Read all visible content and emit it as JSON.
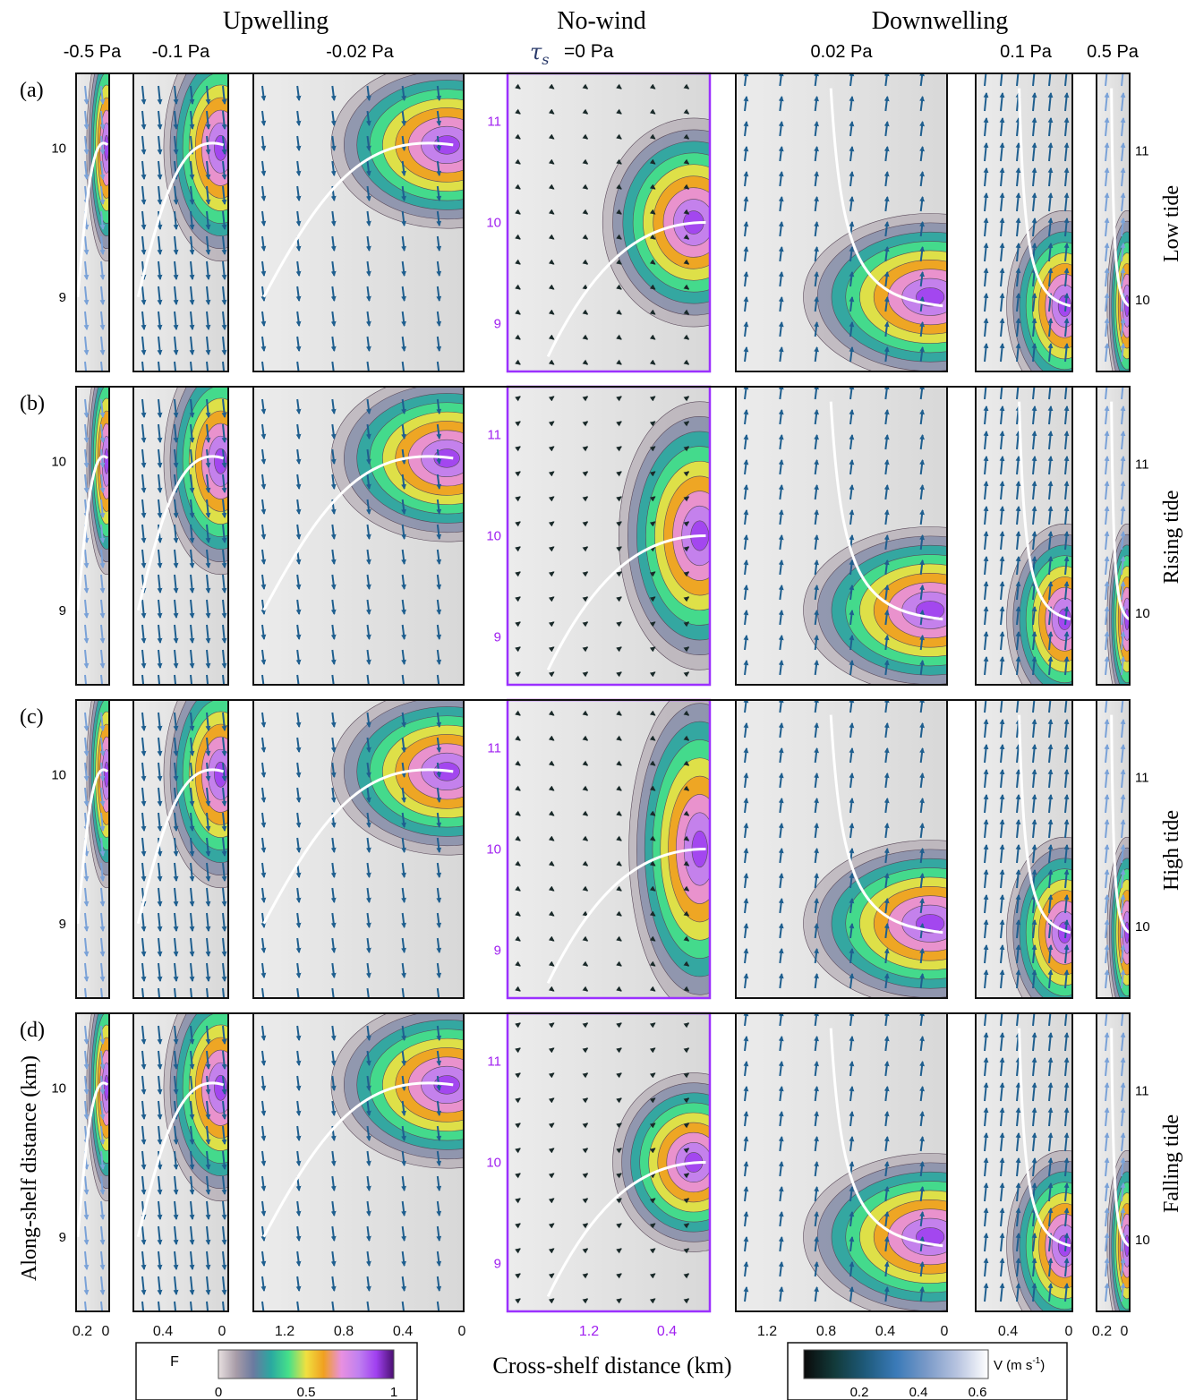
{
  "groups": [
    "Upwelling",
    "No-wind",
    "Downwelling"
  ],
  "tau_label": "τ",
  "tau_sub": "s",
  "stress_labels": [
    "-0.5 Pa",
    "-0.1 Pa",
    "-0.02 Pa",
    "=0 Pa",
    "0.02 Pa",
    "0.1 Pa",
    "0.5 Pa"
  ],
  "row_letters": [
    "(a)",
    "(b)",
    "(c)",
    "(d)"
  ],
  "row_names": [
    "Low tide",
    "Rising tide",
    "High tide",
    "Falling tide"
  ],
  "ylabel": "Along-shelf distance (km)",
  "xlabel": "Cross-shelf distance (km)",
  "colors": {
    "frame": "#111111",
    "nowind_frame": "#9b30ff",
    "nowind_tick": "#a020f0",
    "background": "#e6e6e6",
    "track": "#ffffff"
  },
  "colorbar_F": {
    "label": "F",
    "ticks": [
      "0",
      "0.5",
      "1"
    ],
    "colors": [
      "#e8e0e0",
      "#a89ca8",
      "#6a7aa0",
      "#2aa9a0",
      "#46e08a",
      "#f0e040",
      "#f0a020",
      "#e890e0",
      "#c080f0",
      "#a040f0",
      "#4a1070"
    ]
  },
  "colorbar_V": {
    "label": "V (m s",
    "label_sup": "-1",
    "label_end": ")",
    "ticks": [
      "0.2",
      "0.4",
      "0.6"
    ],
    "colors": [
      "#0a0a0a",
      "#123a3a",
      "#1e5a7a",
      "#3a7ab8",
      "#7a9ac8",
      "#b8c4e0",
      "#ffffff"
    ]
  },
  "chart_data": {
    "type": "contour-quiver panel grid",
    "columns": [
      {
        "stress": "-0.5 Pa",
        "regime": "Upwelling",
        "x_ticks": [
          0.2,
          0
        ],
        "y_ticks_left": [
          9,
          10
        ],
        "y_ticks_right": []
      },
      {
        "stress": "-0.1 Pa",
        "regime": "Upwelling",
        "x_ticks": [
          0.4,
          0
        ],
        "y_ticks_left": [
          9,
          10
        ],
        "y_ticks_right": []
      },
      {
        "stress": "-0.02 Pa",
        "regime": "Upwelling",
        "x_ticks": [
          1.2,
          0.8,
          0.4,
          0
        ],
        "y_ticks_left": [],
        "y_ticks_right": []
      },
      {
        "stress": "0 Pa",
        "regime": "No-wind",
        "x_ticks": [
          1.2,
          0.4
        ],
        "y_ticks_left": [
          9,
          10,
          11
        ],
        "y_ticks_right": []
      },
      {
        "stress": "0.02 Pa",
        "regime": "Downwelling",
        "x_ticks": [
          1.2,
          0.8,
          0.4,
          0
        ],
        "y_ticks_left": [],
        "y_ticks_right": []
      },
      {
        "stress": "0.1 Pa",
        "regime": "Downwelling",
        "x_ticks": [
          0.4,
          0
        ],
        "y_ticks_left": [],
        "y_ticks_right": []
      },
      {
        "stress": "0.5 Pa",
        "regime": "Downwelling",
        "x_ticks": [
          0.2,
          0
        ],
        "y_ticks_left": [],
        "y_ticks_right": [
          10,
          11
        ]
      }
    ],
    "rows": [
      "Low tide",
      "Rising tide",
      "High tide",
      "Falling tide"
    ],
    "x_ticks_shown": [
      [
        "0.2",
        "0"
      ],
      [
        "0.4",
        "0"
      ],
      [
        "1.2",
        "0.8",
        "0.4",
        "0"
      ],
      [
        "1.2",
        "0.4"
      ],
      [
        "1.2",
        "0.8",
        "0.4",
        "0"
      ],
      [
        "0.4",
        "0"
      ],
      [
        "0.2",
        "0"
      ]
    ],
    "y_ticks_left": [
      "9",
      "10"
    ],
    "y_ticks_nowind": [
      "9",
      "10",
      "11"
    ],
    "y_ticks_right": [
      "10",
      "11"
    ],
    "F_range": [
      0,
      1
    ],
    "V_range": [
      0,
      0.6
    ],
    "V_ticks": [
      0.2,
      0.4,
      0.6
    ],
    "xlabel": "Cross-shelf distance (km)",
    "ylabel": "Along-shelf distance (km)"
  }
}
